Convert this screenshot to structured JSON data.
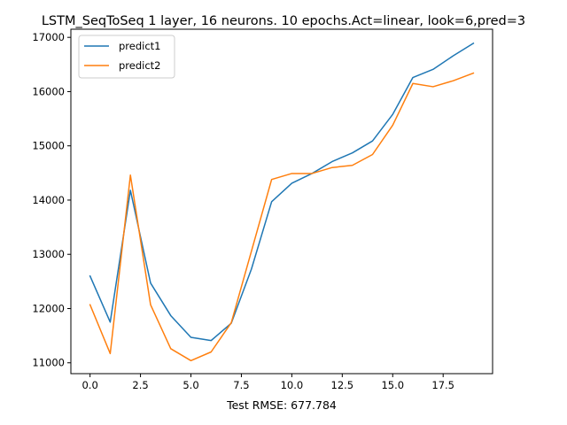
{
  "chart_data": {
    "type": "line",
    "title": "LSTM_SeqToSeq 1 layer, 16 neurons. 10 epochs.Act=linear, look=6,pred=3",
    "xlabel": "Test RMSE: 677.784",
    "ylabel": "",
    "xlim": [
      -0.95,
      19.95
    ],
    "ylim": [
      10800,
      17150
    ],
    "xticks": [
      0.0,
      2.5,
      5.0,
      7.5,
      10.0,
      12.5,
      15.0,
      17.5
    ],
    "xtick_labels": [
      "0.0",
      "2.5",
      "5.0",
      "7.5",
      "10.0",
      "12.5",
      "15.0",
      "17.5"
    ],
    "yticks": [
      11000,
      12000,
      13000,
      14000,
      15000,
      16000,
      17000
    ],
    "ytick_labels": [
      "11000",
      "12000",
      "13000",
      "14000",
      "15000",
      "16000",
      "17000"
    ],
    "grid": false,
    "legend_position": "upper-left",
    "x": [
      0,
      1,
      2,
      3,
      4,
      5,
      6,
      7,
      8,
      9,
      10,
      11,
      12,
      13,
      14,
      15,
      16,
      17,
      18,
      19
    ],
    "series": [
      {
        "name": "predict1",
        "color": "#1f77b4",
        "values": [
          12600,
          11750,
          14180,
          12470,
          11870,
          11470,
          11410,
          11730,
          12730,
          13970,
          14310,
          14490,
          14710,
          14870,
          15090,
          15580,
          16260,
          16410,
          16660,
          16890
        ]
      },
      {
        "name": "predict2",
        "color": "#ff7f0e",
        "values": [
          12070,
          11170,
          14460,
          12070,
          11260,
          11040,
          11200,
          11740,
          13060,
          14380,
          14490,
          14490,
          14600,
          14640,
          14840,
          15380,
          16150,
          16090,
          16200,
          16340
        ]
      }
    ]
  }
}
